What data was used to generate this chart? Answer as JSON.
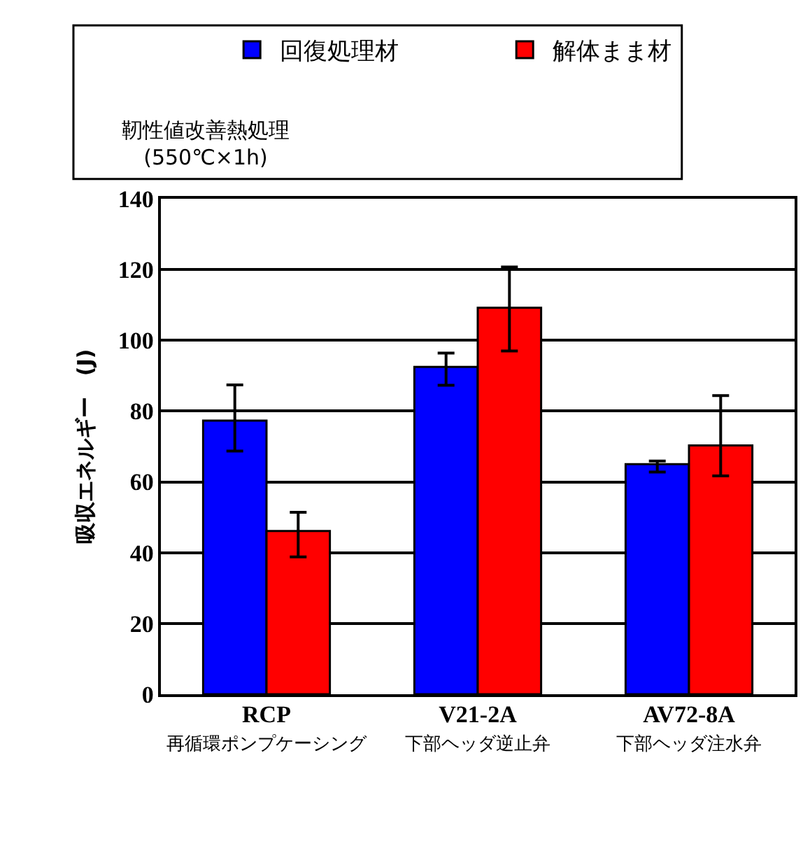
{
  "chart_data": {
    "type": "bar",
    "ylabel": "吸収エネルギー　(J)",
    "categories": [
      "RCP\n再循環ポンプケーシング",
      "V21-2A\n下部ヘッダ逆止弁",
      "AV72-8A\n下部ヘッダ注水弁"
    ],
    "series": [
      {
        "name": "回復処理材",
        "color": "#0000ff",
        "values": [
          77.3,
          92.5,
          65.0
        ],
        "errors": [
          [
            68.7,
            87.4
          ],
          [
            87.3,
            96.4
          ],
          [
            62.8,
            65.9
          ]
        ]
      },
      {
        "name": "解体まま材",
        "color": "#ff0000",
        "values": [
          46.1,
          109.2,
          70.3
        ],
        "errors": [
          [
            38.8,
            51.4
          ],
          [
            97.0,
            120.7
          ],
          [
            61.7,
            84.4
          ]
        ]
      }
    ],
    "annotations": [
      "靭性値改善熱処理\n(550℃×1h)"
    ],
    "ylim": [
      0,
      140
    ],
    "yticks": [
      0,
      20,
      40,
      60,
      80,
      100,
      120,
      140
    ],
    "grid": "y",
    "legend": "top"
  }
}
